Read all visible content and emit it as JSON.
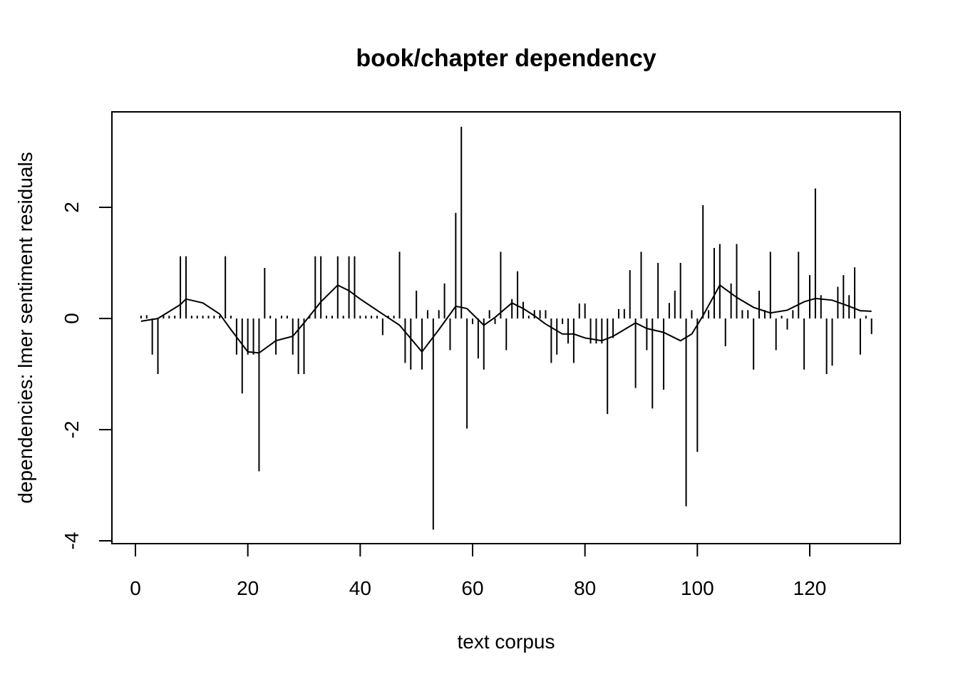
{
  "chart_data": {
    "type": "line",
    "title": "book/chapter dependency",
    "xlabel": "text corpus",
    "ylabel": "dependencies: lmer sentiment residuals",
    "xlim": [
      1,
      131
    ],
    "ylim": [
      -3.8,
      3.45
    ],
    "x_ticks": [
      0,
      20,
      40,
      60,
      80,
      100,
      120
    ],
    "y_ticks": [
      -4,
      -2,
      0,
      2
    ],
    "grid": false,
    "legend": "none",
    "series": [
      {
        "style": "vertical-lines",
        "x": [
          1,
          2,
          3,
          4,
          5,
          6,
          7,
          8,
          9,
          10,
          11,
          12,
          13,
          14,
          15,
          16,
          17,
          18,
          19,
          20,
          21,
          22,
          23,
          24,
          25,
          26,
          27,
          28,
          29,
          30,
          31,
          32,
          33,
          34,
          35,
          36,
          37,
          38,
          39,
          40,
          41,
          42,
          43,
          44,
          45,
          46,
          47,
          48,
          49,
          50,
          51,
          52,
          53,
          54,
          55,
          56,
          57,
          58,
          59,
          60,
          61,
          62,
          63,
          64,
          65,
          66,
          67,
          68,
          69,
          70,
          71,
          72,
          73,
          74,
          75,
          76,
          77,
          78,
          79,
          80,
          81,
          82,
          83,
          84,
          85,
          86,
          87,
          88,
          89,
          90,
          91,
          92,
          93,
          94,
          95,
          96,
          97,
          98,
          99,
          100,
          101,
          102,
          103,
          104,
          105,
          106,
          107,
          108,
          109,
          110,
          111,
          112,
          113,
          114,
          115,
          116,
          117,
          118,
          119,
          120,
          121,
          122,
          123,
          124,
          125,
          126,
          127,
          128,
          129,
          130,
          131
        ],
        "y": [
          0.05,
          0.06,
          -0.65,
          -1.0,
          0.05,
          0.05,
          0.05,
          1.12,
          1.12,
          0.05,
          0.05,
          0.05,
          0.05,
          0.05,
          0.05,
          1.12,
          0.05,
          -0.65,
          -1.35,
          -0.65,
          -0.65,
          -2.75,
          0.91,
          0.05,
          -0.65,
          0.05,
          0.05,
          -0.65,
          -1.0,
          -1.0,
          0.05,
          1.12,
          1.12,
          0.05,
          0.05,
          1.12,
          0.05,
          1.12,
          1.12,
          0.05,
          0.05,
          0.05,
          0.05,
          -0.3,
          0.05,
          0.05,
          1.2,
          -0.8,
          -0.92,
          0.5,
          -0.92,
          0.15,
          -3.8,
          0.15,
          0.63,
          -0.57,
          1.9,
          3.45,
          -1.98,
          -0.1,
          -0.72,
          -0.92,
          0.15,
          -0.1,
          1.2,
          -0.57,
          0.35,
          0.85,
          0.3,
          0.05,
          0.15,
          0.15,
          0.15,
          -0.8,
          -0.65,
          -0.1,
          -0.45,
          -0.8,
          0.27,
          0.27,
          -0.45,
          -0.45,
          -0.45,
          -1.72,
          -0.35,
          0.17,
          0.17,
          0.87,
          -1.25,
          1.2,
          -0.57,
          -1.62,
          1.0,
          -1.28,
          0.28,
          0.5,
          1.0,
          -3.38,
          0.15,
          -2.4,
          2.04,
          0.15,
          1.27,
          1.34,
          -0.5,
          0.63,
          1.34,
          0.15,
          0.15,
          -0.92,
          0.5,
          0.15,
          1.2,
          -0.57,
          0.05,
          -0.2,
          0.15,
          1.2,
          -0.92,
          0.78,
          2.34,
          0.42,
          -1.0,
          -0.85,
          0.57,
          0.78,
          0.42,
          0.92,
          -0.65,
          0.05,
          -0.28
        ]
      },
      {
        "style": "line",
        "x": [
          1,
          4,
          8,
          9,
          12,
          15,
          17,
          20,
          22,
          25,
          28,
          30,
          33,
          36,
          38,
          40,
          44,
          47,
          51,
          54,
          57,
          59,
          62,
          64,
          67,
          69,
          71,
          73,
          76,
          78,
          80,
          83,
          85,
          89,
          91,
          94,
          97,
          99,
          101,
          104,
          107,
          110,
          113,
          116,
          119,
          121,
          124,
          127,
          129,
          131
        ],
        "y": [
          -0.05,
          0.0,
          0.25,
          0.35,
          0.28,
          0.08,
          -0.2,
          -0.6,
          -0.62,
          -0.4,
          -0.32,
          -0.08,
          0.3,
          0.6,
          0.5,
          0.35,
          0.08,
          -0.12,
          -0.6,
          -0.2,
          0.22,
          0.18,
          -0.12,
          0.02,
          0.28,
          0.18,
          0.05,
          -0.1,
          -0.28,
          -0.28,
          -0.35,
          -0.4,
          -0.32,
          -0.08,
          -0.18,
          -0.25,
          -0.4,
          -0.28,
          0.05,
          0.6,
          0.38,
          0.2,
          0.1,
          0.15,
          0.3,
          0.36,
          0.33,
          0.22,
          0.14,
          0.13
        ]
      }
    ]
  }
}
